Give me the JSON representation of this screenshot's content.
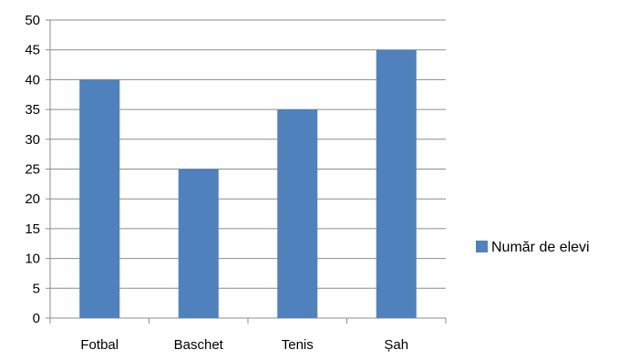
{
  "chart_data": {
    "type": "bar",
    "categories": [
      "Fotbal",
      "Baschet",
      "Tenis",
      "Șah"
    ],
    "series": [
      {
        "name": "Număr de elevi",
        "values": [
          40,
          25,
          35,
          45
        ],
        "color": "#4f81bd"
      }
    ],
    "ylim": [
      0,
      50
    ],
    "yticks": [
      0,
      5,
      10,
      15,
      20,
      25,
      30,
      35,
      40,
      45,
      50
    ],
    "grid": true,
    "legend_position": "right"
  }
}
